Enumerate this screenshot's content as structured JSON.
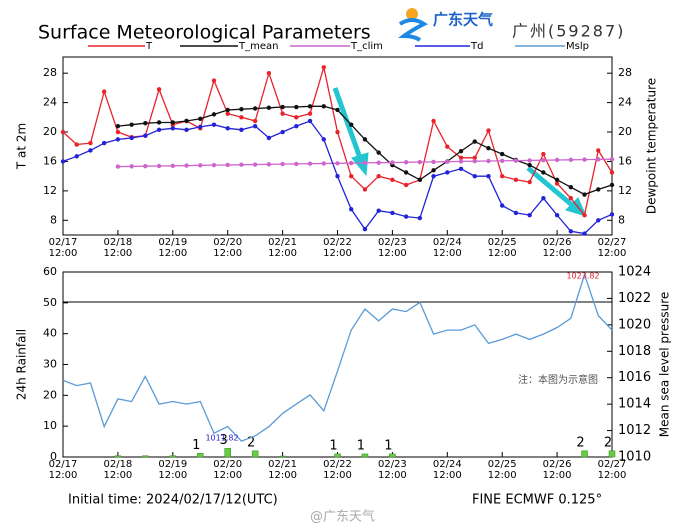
{
  "header": {
    "brand": "广东天气",
    "station": "广州(59287)"
  },
  "footer": {
    "init": "Initial time: 2024/02/17/12(UTC)",
    "model": "FINE ECMWF 0.125°",
    "note": "注：本图为示意图",
    "watermark": "@广东天气"
  },
  "chart_data": [
    {
      "type": "line",
      "title": "Surface Meteorological Parameters",
      "y_label": "T at 2m",
      "y2_label": "Dewpoint temperature",
      "categories": [
        "02/17\n12:00",
        null,
        null,
        null,
        "02/18\n12:00",
        null,
        null,
        null,
        "02/19\n12:00",
        null,
        null,
        null,
        "02/20\n12:00",
        null,
        null,
        null,
        "02/21\n12:00",
        null,
        null,
        null,
        "02/22\n12:00",
        null,
        null,
        null,
        "02/23\n12:00",
        null,
        null,
        null,
        "02/24\n12:00",
        null,
        null,
        null,
        "02/25\n12:00",
        null,
        null,
        null,
        "02/26\n12:00",
        null,
        null,
        null,
        "02/27\n12:00"
      ],
      "ylim": [
        6,
        30.2
      ],
      "yticks": [
        8,
        12,
        16,
        20,
        24,
        28
      ],
      "y2lim": [
        6,
        30.2
      ],
      "y2ticks": [
        8,
        12,
        16,
        20,
        24,
        28
      ],
      "series": [
        {
          "name": "T",
          "color": "#e8232a",
          "values": [
            20,
            18.3,
            18.5,
            25.5,
            20,
            19.3,
            19.5,
            25.8,
            21,
            21.5,
            20.5,
            27,
            22.5,
            22,
            21.5,
            28,
            22.5,
            22,
            22.5,
            28.8,
            20,
            14,
            12.2,
            14,
            13.5,
            12.8,
            13.5,
            21.5,
            18,
            16.5,
            16.5,
            20.2,
            14,
            13.5,
            13.2,
            17,
            13,
            11,
            8.7,
            17.5,
            14.5
          ]
        },
        {
          "name": "T_mean",
          "color": "#111111",
          "values": [
            null,
            null,
            null,
            null,
            20.8,
            21,
            21.2,
            21.3,
            21.3,
            21.5,
            21.8,
            22.4,
            23,
            23.1,
            23.2,
            23.3,
            23.4,
            23.4,
            23.5,
            23.5,
            23,
            21,
            19,
            17.2,
            15.5,
            14.5,
            13.5,
            14.8,
            16,
            17.4,
            18.7,
            17.8,
            17,
            16.2,
            15.5,
            14.5,
            13.5,
            12.5,
            11.5,
            12.2,
            12.8
          ]
        },
        {
          "name": "T_clim",
          "color": "#cc66cc",
          "values": [
            null,
            null,
            null,
            null,
            15.3,
            15.33,
            15.36,
            15.38,
            15.41,
            15.44,
            15.47,
            15.5,
            15.52,
            15.55,
            15.58,
            15.61,
            15.64,
            15.66,
            15.69,
            15.72,
            15.75,
            15.78,
            15.8,
            15.83,
            15.86,
            15.89,
            15.92,
            15.94,
            15.97,
            16,
            16.03,
            16.06,
            16.08,
            16.11,
            16.14,
            16.17,
            16.2,
            16.22,
            16.25,
            16.28,
            16.3
          ]
        },
        {
          "name": "Td",
          "color": "#2323d8",
          "values": [
            16,
            16.7,
            17.5,
            18.5,
            19,
            19.2,
            19.5,
            20.3,
            20.5,
            20.3,
            20.7,
            21,
            20.5,
            20.3,
            20.8,
            19.2,
            20,
            20.8,
            21.5,
            19,
            14,
            9.5,
            6.8,
            9.3,
            9,
            8.5,
            8.3,
            14,
            14.5,
            15,
            14,
            14,
            10,
            9,
            8.7,
            11,
            8.7,
            6.5,
            6.2,
            8,
            8.8
          ]
        }
      ]
    },
    {
      "type": "bar",
      "y_label": "24h Rainfall",
      "y2_label": "Mean sea level pressure",
      "categories": [
        "02/17\n12:00",
        null,
        null,
        null,
        "02/18\n12:00",
        null,
        null,
        null,
        "02/19\n12:00",
        null,
        null,
        null,
        "02/20\n12:00",
        null,
        null,
        null,
        "02/21\n12:00",
        null,
        null,
        null,
        "02/22\n12:00",
        null,
        null,
        null,
        "02/23\n12:00",
        null,
        null,
        null,
        "02/24\n12:00",
        null,
        null,
        null,
        "02/25\n12:00",
        null,
        null,
        null,
        "02/26\n12:00",
        null,
        null,
        null,
        "02/27\n12:00"
      ],
      "ylim": [
        0,
        60
      ],
      "yticks": [
        0,
        10,
        20,
        30,
        40,
        50,
        60
      ],
      "y2lim": [
        1010,
        1024
      ],
      "y2ticks": [
        1010,
        1012,
        1014,
        1016,
        1018,
        1020,
        1022,
        1024
      ],
      "annotations": [
        "1011.82",
        "1023.82"
      ],
      "series": [
        {
          "color": "#66cc44",
          "values": [
            null,
            null,
            null,
            null,
            0.4,
            null,
            0.4,
            null,
            0.4,
            null,
            1.2,
            null,
            2.8,
            null,
            2,
            null,
            0.3,
            null,
            null,
            null,
            1,
            null,
            1,
            null,
            1,
            null,
            null,
            null,
            null,
            null,
            null,
            null,
            null,
            null,
            null,
            null,
            null,
            null,
            2,
            null,
            2
          ],
          "value_labels": [
            null,
            null,
            null,
            null,
            null,
            null,
            null,
            null,
            null,
            null,
            "1",
            null,
            "3",
            null,
            "2",
            null,
            null,
            null,
            null,
            null,
            "1",
            null,
            "1",
            null,
            "1",
            null,
            null,
            null,
            null,
            null,
            null,
            null,
            null,
            null,
            null,
            null,
            null,
            null,
            "2",
            null,
            "2"
          ]
        },
        {
          "name": "Mslp",
          "type": "line",
          "axis": "y2",
          "color": "#5b9bd5",
          "values": [
            1015.8,
            1015.4,
            1015.6,
            1012.3,
            1014.4,
            1014.2,
            1016.1,
            1014,
            1014.2,
            1014,
            1014.2,
            1011.8,
            1012.3,
            1011.2,
            1011.6,
            1012.3,
            1013.3,
            1014,
            1014.7,
            1013.5,
            1016.5,
            1019.6,
            1021.2,
            1020.3,
            1021.2,
            1021,
            1021.7,
            1019.3,
            1019.6,
            1019.6,
            1020,
            1018.6,
            1018.9,
            1019.3,
            1018.9,
            1019.3,
            1019.8,
            1020.5,
            1023.8,
            1020.7,
            1019.6
          ]
        }
      ]
    }
  ]
}
